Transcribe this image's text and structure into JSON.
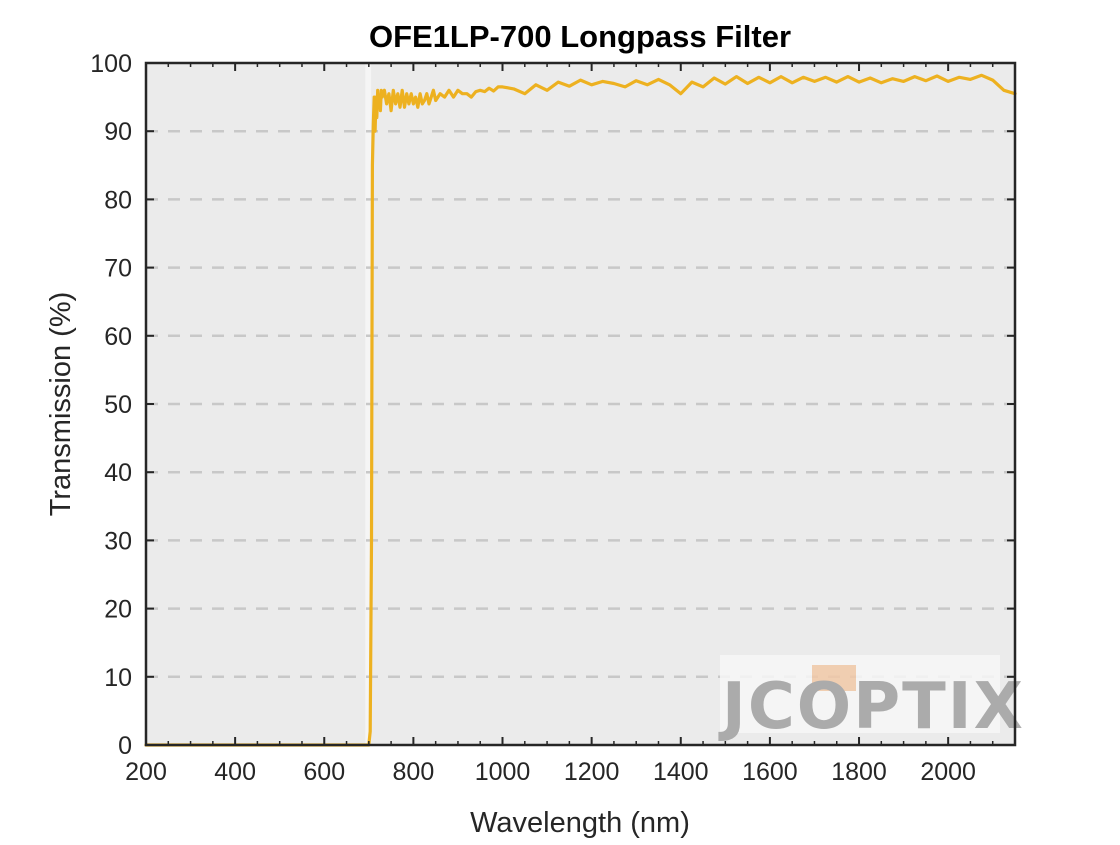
{
  "chart_data": {
    "type": "line",
    "title": "OFE1LP-700 Longpass Filter",
    "xlabel": "Wavelength (nm)",
    "ylabel": "Transmission (%)",
    "xlim": [
      200,
      2150
    ],
    "ylim": [
      0,
      100
    ],
    "xticks": [
      200,
      400,
      600,
      800,
      1000,
      1200,
      1400,
      1600,
      1800,
      2000
    ],
    "yticks": [
      0,
      10,
      20,
      30,
      40,
      50,
      60,
      70,
      80,
      90,
      100
    ],
    "grid": "horizontal-dashed",
    "colors": {
      "line": "#EDB120",
      "plot_bg": "#EBEBEB",
      "grid": "#C8C8C8",
      "excluded_band": "#F5F5F5",
      "axis": "#262626"
    },
    "excluded_band_x": [
      692,
      705
    ],
    "series": [
      {
        "name": "",
        "x": [
          200,
          300,
          400,
          500,
          600,
          690,
          700,
          703,
          706,
          708,
          710,
          712,
          714,
          716,
          718,
          720,
          722,
          724,
          726,
          728,
          730,
          735,
          740,
          745,
          750,
          755,
          760,
          765,
          770,
          775,
          780,
          785,
          790,
          795,
          800,
          805,
          810,
          815,
          820,
          825,
          830,
          835,
          840,
          845,
          850,
          860,
          870,
          880,
          890,
          900,
          910,
          920,
          930,
          940,
          950,
          960,
          970,
          980,
          990,
          1000,
          1025,
          1050,
          1075,
          1100,
          1125,
          1150,
          1175,
          1200,
          1225,
          1250,
          1275,
          1300,
          1325,
          1350,
          1375,
          1400,
          1425,
          1450,
          1475,
          1500,
          1525,
          1550,
          1575,
          1600,
          1625,
          1650,
          1675,
          1700,
          1725,
          1750,
          1775,
          1800,
          1825,
          1850,
          1875,
          1900,
          1925,
          1950,
          1975,
          2000,
          2025,
          2050,
          2075,
          2100,
          2125,
          2150
        ],
        "y": [
          0,
          0,
          0,
          0,
          0,
          0,
          0,
          2,
          30,
          85,
          91,
          95,
          90,
          95,
          92,
          96,
          94,
          95,
          93,
          96,
          95,
          96,
          94,
          95.5,
          93,
          96,
          94,
          95.5,
          93.5,
          96,
          93.5,
          95.5,
          94,
          95.5,
          94,
          95,
          93.5,
          95.5,
          94,
          94.5,
          95.5,
          94,
          95,
          96,
          94.5,
          95.5,
          95,
          96,
          95,
          96,
          95.5,
          95.5,
          95,
          95.8,
          96,
          95.8,
          96.3,
          95.9,
          96.5,
          96.5,
          96.2,
          95.5,
          96.8,
          96,
          97.2,
          96.6,
          97.5,
          96.8,
          97.3,
          97,
          96.5,
          97.4,
          96.8,
          97.6,
          96.8,
          95.5,
          97.2,
          96.5,
          97.8,
          96.9,
          98,
          97,
          97.9,
          97.1,
          98,
          97.1,
          97.9,
          97.3,
          97.9,
          97.2,
          98,
          97.2,
          97.8,
          97.1,
          97.7,
          97.3,
          98,
          97.4,
          98.1,
          97.3,
          97.9,
          97.6,
          98.2,
          97.5,
          96,
          95.5
        ]
      }
    ]
  },
  "watermark": {
    "text": "JCOPTIX",
    "colors": {
      "letters": "#A0A0A0",
      "accent": "#F2C9A8"
    }
  }
}
